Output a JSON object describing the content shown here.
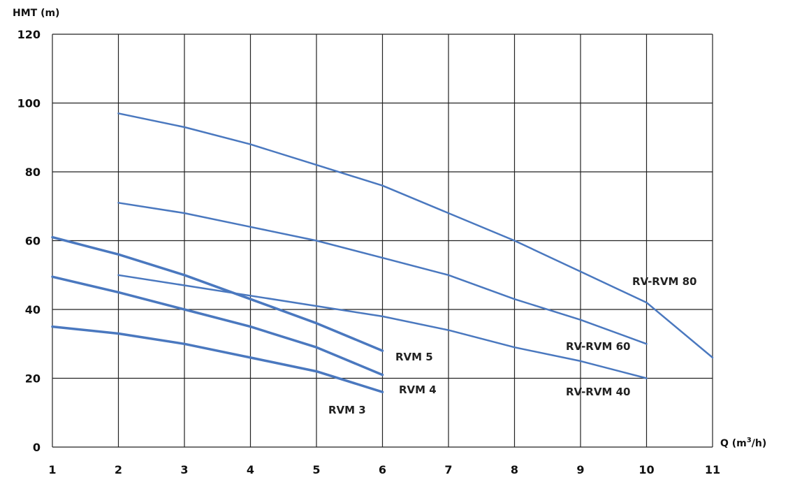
{
  "chart_data": {
    "type": "line",
    "ylabel": "HMT (m)",
    "xlabel_prefix": "Q (m",
    "xlabel_sup": "3",
    "xlabel_suffix": "/h)",
    "xlim": [
      1,
      11
    ],
    "ylim": [
      0,
      120
    ],
    "x_ticks": [
      "1",
      "2",
      "3",
      "4",
      "5",
      "6",
      "7",
      "8",
      "9",
      "10",
      "11"
    ],
    "y_ticks": [
      "0",
      "20",
      "40",
      "60",
      "80",
      "100",
      "120"
    ],
    "grid": true,
    "line_color": "#4a78bf",
    "series": [
      {
        "name": "RV-RVM 80",
        "x": [
          2,
          3,
          4,
          5,
          6,
          7,
          8,
          9,
          10,
          11
        ],
        "y": [
          97,
          93,
          88,
          82,
          76,
          68,
          60,
          51,
          42,
          26
        ]
      },
      {
        "name": "RV-RVM 60",
        "x": [
          2,
          3,
          4,
          5,
          6,
          7,
          8,
          9,
          10
        ],
        "y": [
          71,
          68,
          64,
          60,
          55,
          50,
          43,
          37,
          30
        ]
      },
      {
        "name": "RV-RVM 40",
        "x": [
          2,
          3,
          4,
          5,
          6,
          7,
          8,
          9,
          10
        ],
        "y": [
          50,
          47,
          44,
          41,
          38,
          34,
          29,
          25,
          20
        ]
      },
      {
        "name": "RVM 5",
        "x": [
          1,
          2,
          3,
          4,
          5,
          6
        ],
        "y": [
          61,
          56,
          50,
          43,
          36,
          28
        ]
      },
      {
        "name": "RVM 4",
        "x": [
          1,
          2,
          3,
          4,
          5,
          6
        ],
        "y": [
          49.5,
          45,
          40,
          35,
          29,
          21
        ]
      },
      {
        "name": "RVM 3",
        "x": [
          1,
          2,
          3,
          4,
          5,
          6
        ],
        "y": [
          35,
          33,
          30,
          26,
          22,
          16
        ]
      }
    ]
  }
}
